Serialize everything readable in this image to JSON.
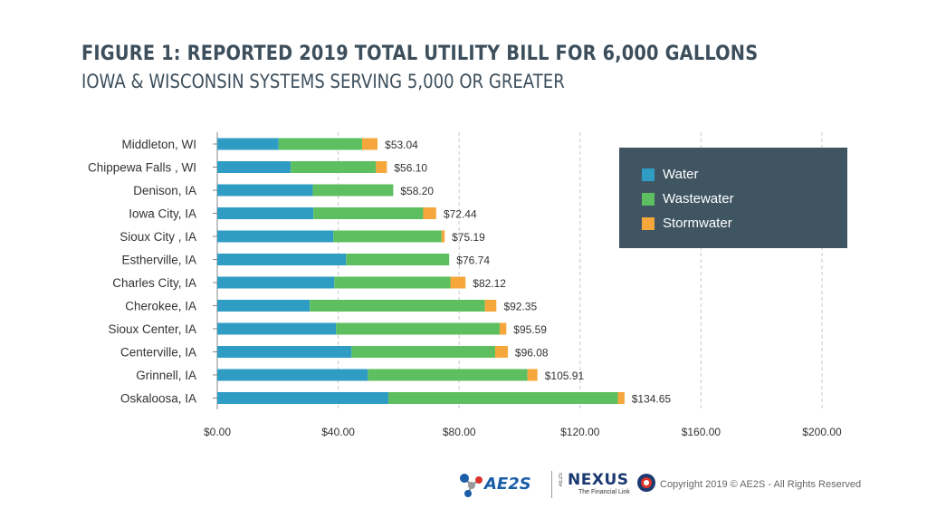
{
  "title": "FIGURE 1: REPORTED 2019 TOTAL UTILITY BILL FOR 6,000 GALLONS",
  "subtitle": "IOWA & WISCONSIN SYSTEMS SERVING 5,000 OR GREATER",
  "colors": {
    "water": "#2f9cc4",
    "wastewater": "#5dbf5f",
    "stormwater": "#f5a73b",
    "title_text": "#3d4f5c",
    "legend_bg": "#3f5562"
  },
  "legend": {
    "items": [
      {
        "label": "Water",
        "color": "#2f9cc4"
      },
      {
        "label": "Wastewater",
        "color": "#5dbf5f"
      },
      {
        "label": "Stormwater",
        "color": "#f5a73b"
      }
    ],
    "placement": "top-right"
  },
  "chart_data": {
    "type": "bar",
    "orientation": "horizontal",
    "stacked": true,
    "categories": [
      "Middleton, WI",
      "Chippewa Falls , WI",
      "Denison, IA",
      "Iowa City, IA",
      "Sioux City , IA",
      "Estherville, IA",
      "Charles City, IA",
      "Cherokee, IA",
      "Sioux Center, IA",
      "Centerville, IA",
      "Grinnell, IA",
      "Oskaloosa, IA"
    ],
    "series": [
      {
        "name": "Water",
        "values": [
          20.3,
          24.3,
          31.6,
          31.8,
          38.4,
          42.6,
          38.7,
          30.6,
          39.3,
          44.4,
          49.8,
          56.6
        ]
      },
      {
        "name": "Wastewater",
        "values": [
          27.6,
          28.2,
          26.6,
          36.3,
          35.8,
          34.1,
          38.4,
          57.9,
          54.1,
          47.5,
          52.8,
          75.9
        ]
      },
      {
        "name": "Stormwater",
        "values": [
          5.1,
          3.6,
          0,
          4.3,
          1.0,
          0,
          5.0,
          3.8,
          2.2,
          4.2,
          3.3,
          2.2
        ]
      }
    ],
    "totals": [
      53.04,
      56.1,
      58.2,
      72.44,
      75.19,
      76.74,
      82.12,
      92.35,
      95.59,
      96.08,
      105.91,
      134.65
    ],
    "total_labels": [
      "$53.04",
      "$56.10",
      "$58.20",
      "$72.44",
      "$75.19",
      "$76.74",
      "$82.12",
      "$92.35",
      "$95.59",
      "$96.08",
      "$105.91",
      "$134.65"
    ],
    "xlim": [
      0,
      200
    ],
    "xticks": [
      0,
      40,
      80,
      120,
      160,
      200
    ],
    "xtick_labels": [
      "$0.00",
      "$40.00",
      "$80.00",
      "$120.00",
      "$160.00",
      "$200.00"
    ],
    "grid": "vertical dashed"
  },
  "footer": {
    "ae2s_logo_text": "AE2S",
    "nexus_logo_text": "NEXUS",
    "nexus_tagline": "The Financial Link",
    "nexus_side_text": "AE2S",
    "copyright": "Copyright 2019 © AE2S - All Rights Reserved"
  }
}
